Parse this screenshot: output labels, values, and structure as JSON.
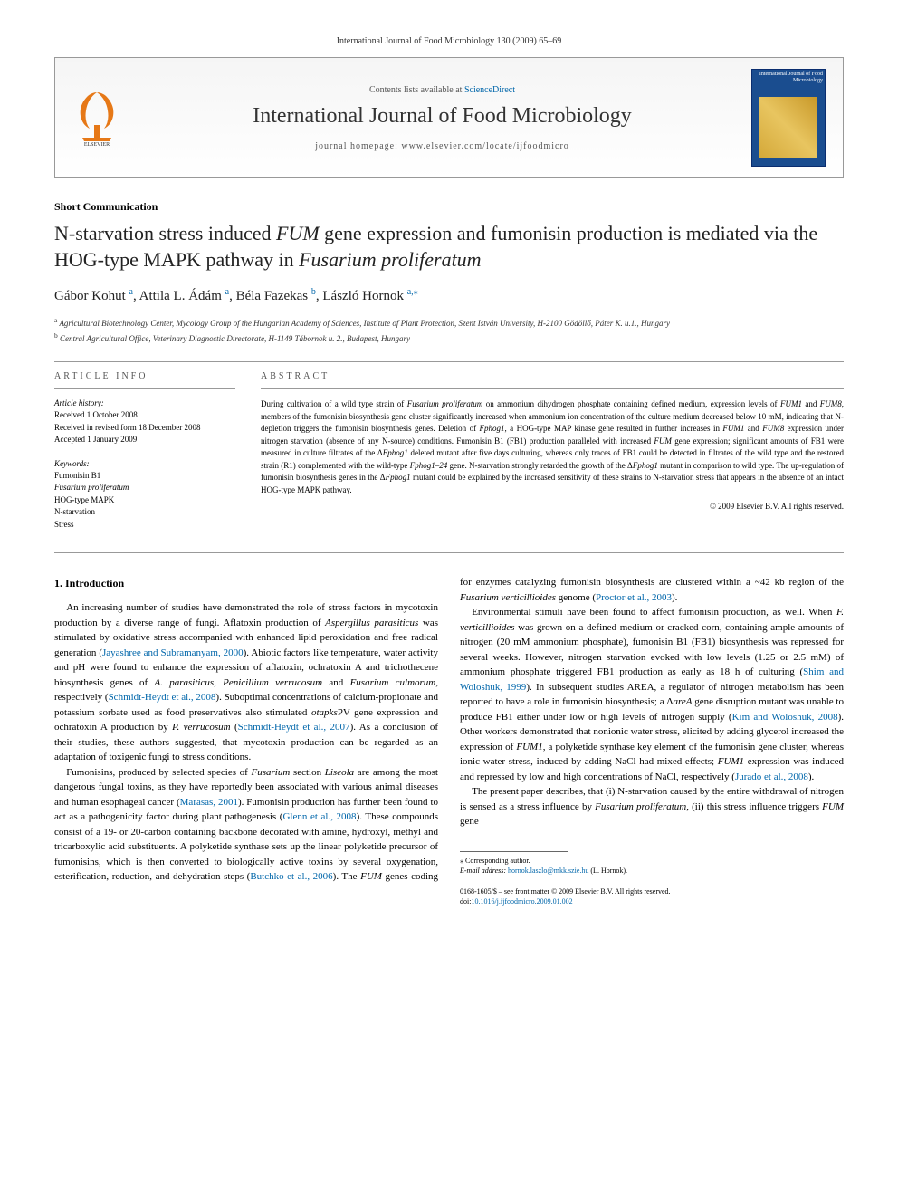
{
  "page_header": "International Journal of Food Microbiology 130 (2009) 65–69",
  "banner": {
    "contents_line_prefix": "Contents lists available at ",
    "sd_text": "ScienceDirect",
    "journal_name": "International Journal of Food Microbiology",
    "homepage_prefix": "journal homepage: ",
    "homepage_url": "www.elsevier.com/locate/ijfoodmicro",
    "cover_text": "International Journal of\nFood Microbiology"
  },
  "article_type": "Short Communication",
  "title_parts": {
    "p1": "N-starvation stress induced ",
    "p2": "FUM",
    "p3": " gene expression and fumonisin production is mediated via the HOG-type MAPK pathway in ",
    "p4": "Fusarium proliferatum"
  },
  "authors": [
    {
      "name": "Gábor Kohut",
      "sup": "a"
    },
    {
      "name": "Attila L. Ádám",
      "sup": "a"
    },
    {
      "name": "Béla Fazekas",
      "sup": "b"
    },
    {
      "name": "László Hornok",
      "sup": "a,",
      "star": true
    }
  ],
  "affiliations": {
    "a": "Agricultural Biotechnology Center, Mycology Group of the Hungarian Academy of Sciences, Institute of Plant Protection, Szent István University, H-2100 Gödöllő, Páter K. u.1., Hungary",
    "b": "Central Agricultural Office, Veterinary Diagnostic Directorate, H-1149 Tábornok u. 2., Budapest, Hungary"
  },
  "info": {
    "heading": "article info",
    "history_label": "Article history:",
    "received": "Received 1 October 2008",
    "revised": "Received in revised form 18 December 2008",
    "accepted": "Accepted 1 January 2009",
    "keywords_label": "Keywords:",
    "keywords": [
      "Fumonisin B1",
      "Fusarium proliferatum",
      "HOG-type MAPK",
      "N-starvation",
      "Stress"
    ]
  },
  "abstract": {
    "heading": "abstract",
    "text_runs": [
      {
        "t": "During cultivation of a wild type strain of "
      },
      {
        "t": "Fusarium proliferatum",
        "i": true
      },
      {
        "t": " on ammonium dihydrogen phosphate containing defined medium, expression levels of "
      },
      {
        "t": "FUM1",
        "i": true
      },
      {
        "t": " and "
      },
      {
        "t": "FUM8",
        "i": true
      },
      {
        "t": ", members of the fumonisin biosynthesis gene cluster significantly increased when ammonium ion concentration of the culture medium decreased below 10 mM, indicating that N-depletion triggers the fumonisin biosynthesis genes. Deletion of "
      },
      {
        "t": "Fphog1",
        "i": true
      },
      {
        "t": ", a HOG-type MAP kinase gene resulted in further increases in "
      },
      {
        "t": "FUM1",
        "i": true
      },
      {
        "t": " and "
      },
      {
        "t": "FUM8",
        "i": true
      },
      {
        "t": " expression under nitrogen starvation (absence of any N-source) conditions. Fumonisin B1 (FB1) production paralleled with increased "
      },
      {
        "t": "FUM",
        "i": true
      },
      {
        "t": " gene expression; significant amounts of FB1 were measured in culture filtrates of the Δ"
      },
      {
        "t": "Fphog1",
        "i": true
      },
      {
        "t": " deleted mutant after five days culturing, whereas only traces of FB1 could be detected in filtrates of the wild type and the restored strain (R1) complemented with the wild-type "
      },
      {
        "t": "Fphog1–24",
        "i": true
      },
      {
        "t": " gene. N-starvation strongly retarded the growth of the Δ"
      },
      {
        "t": "Fphog1",
        "i": true
      },
      {
        "t": " mutant in comparison to wild type. The up-regulation of fumonisin biosynthesis genes in the Δ"
      },
      {
        "t": "Fphog1",
        "i": true
      },
      {
        "t": " mutant could be explained by the increased sensitivity of these strains to N-starvation stress that appears in the absence of an intact HOG-type MAPK pathway."
      }
    ],
    "copyright": "© 2009 Elsevier B.V. All rights reserved."
  },
  "body": {
    "section_heading": "1. Introduction",
    "paragraphs": [
      [
        {
          "t": "An increasing number of studies have demonstrated the role of stress factors in mycotoxin production by a diverse range of fungi. Aflatoxin production of "
        },
        {
          "t": "Aspergillus parasiticus",
          "i": true
        },
        {
          "t": " was stimulated by oxidative stress accompanied with enhanced lipid peroxidation and free radical generation ("
        },
        {
          "t": "Jayashree and Subramanyam, 2000",
          "c": true
        },
        {
          "t": "). Abiotic factors like temperature, water activity and pH were found to enhance the expression of aflatoxin, ochratoxin A and trichothecene biosynthesis genes of "
        },
        {
          "t": "A. parasiticus",
          "i": true
        },
        {
          "t": ", "
        },
        {
          "t": "Penicillium verrucosum",
          "i": true
        },
        {
          "t": " and "
        },
        {
          "t": "Fusarium culmorum",
          "i": true
        },
        {
          "t": ", respectively ("
        },
        {
          "t": "Schmidt-Heydt et al., 2008",
          "c": true
        },
        {
          "t": "). Suboptimal concentrations of calcium-propionate and potassium sorbate used as food preservatives also stimulated "
        },
        {
          "t": "otapks",
          "i": true
        },
        {
          "t": "PV gene expression and ochratoxin A production by "
        },
        {
          "t": "P. verrucosum",
          "i": true
        },
        {
          "t": " ("
        },
        {
          "t": "Schmidt-Heydt et al., 2007",
          "c": true
        },
        {
          "t": "). As a conclusion of their studies, these authors suggested, that mycotoxin production can be regarded as an adaptation of toxigenic fungi to stress conditions."
        }
      ],
      [
        {
          "t": "Fumonisins, produced by selected species of "
        },
        {
          "t": "Fusarium",
          "i": true
        },
        {
          "t": " section "
        },
        {
          "t": "Liseola",
          "i": true
        },
        {
          "t": " are among the most dangerous fungal toxins, as they have reportedly been associated with various animal diseases and human esophageal cancer ("
        },
        {
          "t": "Marasas, 2001",
          "c": true
        },
        {
          "t": "). Fumonisin production has further been found to act as a pathogenicity factor during plant pathogenesis ("
        },
        {
          "t": "Glenn et al., 2008",
          "c": true
        },
        {
          "t": "). These compounds consist of a 19- or 20-carbon containing backbone decorated with amine, hydroxyl, methyl and tricarboxylic acid substituents. A polyketide synthase sets up the linear polyketide precursor of fumonisins, which is then converted to biologically active toxins by several oxygenation, esterification, reduction, and dehydration steps ("
        },
        {
          "t": "Butchko et al., 2006",
          "c": true
        },
        {
          "t": "). The "
        },
        {
          "t": "FUM",
          "i": true
        },
        {
          "t": " genes coding for enzymes catalyzing fumonisin biosynthesis are clustered within a ~42 kb region of the "
        },
        {
          "t": "Fusarium verticillioides",
          "i": true
        },
        {
          "t": " genome ("
        },
        {
          "t": "Proctor et al., 2003",
          "c": true
        },
        {
          "t": ")."
        }
      ],
      [
        {
          "t": "Environmental stimuli have been found to affect fumonisin production, as well. When "
        },
        {
          "t": "F. verticillioides",
          "i": true
        },
        {
          "t": " was grown on a defined medium or cracked corn, containing ample amounts of nitrogen (20 mM ammonium phosphate), fumonisin B1 (FB1) biosynthesis was repressed for several weeks. However, nitrogen starvation evoked with low levels (1.25 or 2.5 mM) of ammonium phosphate triggered FB1 production as early as 18 h of culturing ("
        },
        {
          "t": "Shim and Woloshuk, 1999",
          "c": true
        },
        {
          "t": "). In subsequent studies AREA, a regulator of nitrogen metabolism has been reported to have a role in fumonisin biosynthesis; a Δ"
        },
        {
          "t": "areA",
          "i": true
        },
        {
          "t": " gene disruption mutant was unable to produce FB1 either under low or high levels of nitrogen supply ("
        },
        {
          "t": "Kim and Woloshuk, 2008",
          "c": true
        },
        {
          "t": "). Other workers demonstrated that nonionic water stress, elicited by adding glycerol increased the expression of "
        },
        {
          "t": "FUM1",
          "i": true
        },
        {
          "t": ", a polyketide synthase key element of the fumonisin gene cluster, whereas ionic water stress, induced by adding NaCl had mixed effects; "
        },
        {
          "t": "FUM1",
          "i": true
        },
        {
          "t": " expression was induced and repressed by low and high concentrations of NaCl, respectively ("
        },
        {
          "t": "Jurado et al., 2008",
          "c": true
        },
        {
          "t": ")."
        }
      ],
      [
        {
          "t": "The present paper describes, that (i) N-starvation caused by the entire withdrawal of nitrogen is sensed as a stress influence by "
        },
        {
          "t": "Fusarium proliferatum",
          "i": true
        },
        {
          "t": ", (ii) this stress influence triggers "
        },
        {
          "t": "FUM",
          "i": true
        },
        {
          "t": " gene"
        }
      ]
    ]
  },
  "footer": {
    "corresponding_label": "Corresponding author.",
    "email_label": "E-mail address:",
    "email": "hornok.laszlo@mkk.szie.hu",
    "email_name": "(L. Hornok).",
    "issn_line": "0168-1605/$ – see front matter © 2009 Elsevier B.V. All rights reserved.",
    "doi_label": "doi:",
    "doi": "10.1016/j.ijfoodmicro.2009.01.002"
  },
  "colors": {
    "link": "#0066aa",
    "text": "#000000",
    "border": "#999999",
    "cover_bg": "#1a4d8f"
  }
}
